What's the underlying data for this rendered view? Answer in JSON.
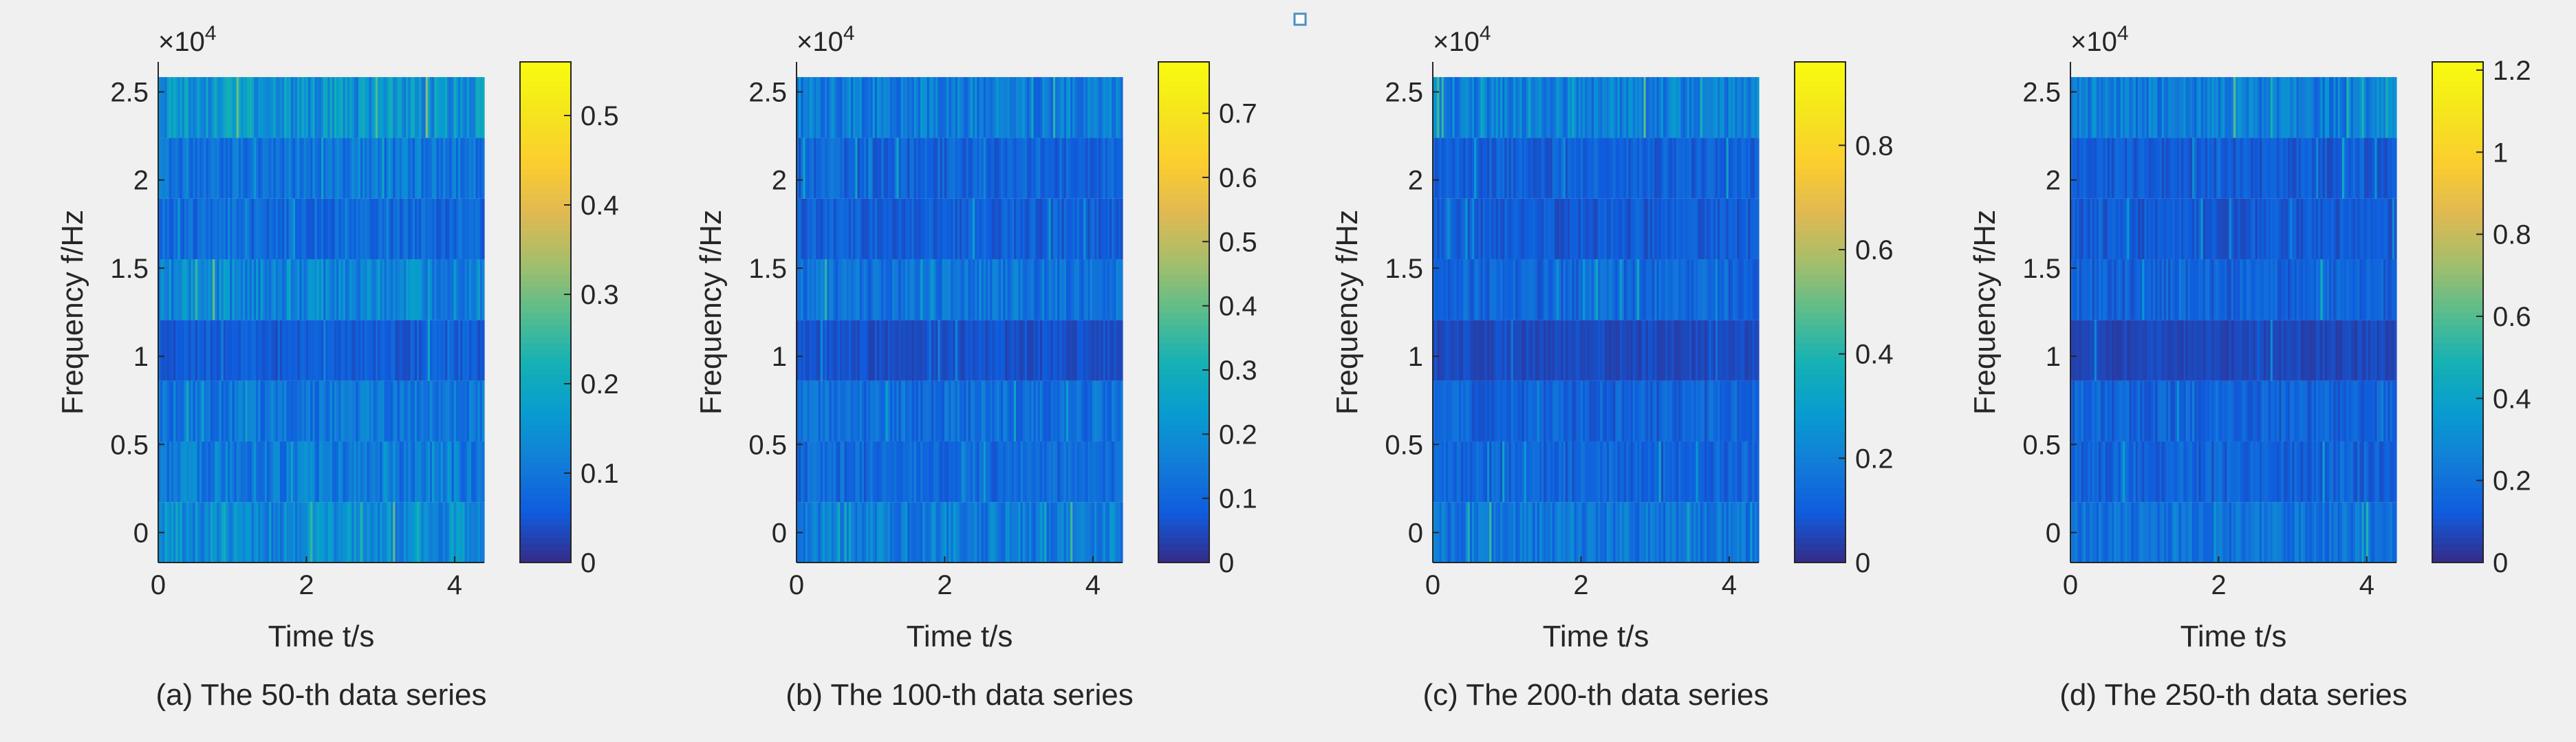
{
  "page": {
    "background": "#f0f0f0",
    "marker_color": "#4a90c0"
  },
  "chart_data": [
    {
      "type": "heatmap",
      "panel_id": "a",
      "caption": "(a) The 50-th data series",
      "xlabel": "Time t/s",
      "ylabel": "Frequency f/Hz",
      "exponent_label": "×10",
      "exponent_power": "4",
      "xlim": [
        0,
        4.4
      ],
      "ylim": [
        -0.17,
        2.67
      ],
      "xticks": [
        0,
        2,
        4
      ],
      "xtick_labels": [
        "0",
        "2",
        "4"
      ],
      "yticks": [
        0,
        0.5,
        1,
        1.5,
        2,
        2.5
      ],
      "ytick_labels": [
        "0",
        "0.5",
        "1",
        "1.5",
        "2",
        "2.5"
      ],
      "colorbar_range": [
        0,
        0.56
      ],
      "colorbar_ticks": [
        0,
        0.1,
        0.2,
        0.3,
        0.4,
        0.5
      ],
      "colorbar_tick_labels": [
        "0",
        "0.1",
        "0.2",
        "0.3",
        "0.4",
        "0.5"
      ],
      "band_centers": [
        0,
        0.3445,
        0.689,
        1.0335,
        1.378,
        1.7225,
        2.067,
        2.4115
      ],
      "band_levels": [
        0.14,
        0.11,
        0.1,
        0.06,
        0.13,
        0.08,
        0.1,
        0.15
      ],
      "time_columns": 150,
      "seed": 50
    },
    {
      "type": "heatmap",
      "panel_id": "b",
      "caption": "(b) The 100-th data series",
      "xlabel": "Time t/s",
      "ylabel": "Frequency f/Hz",
      "exponent_label": "×10",
      "exponent_power": "4",
      "xlim": [
        0,
        4.4
      ],
      "ylim": [
        -0.17,
        2.67
      ],
      "xticks": [
        0,
        2,
        4
      ],
      "xtick_labels": [
        "0",
        "2",
        "4"
      ],
      "yticks": [
        0,
        0.5,
        1,
        1.5,
        2,
        2.5
      ],
      "ytick_labels": [
        "0",
        "0.5",
        "1",
        "1.5",
        "2",
        "2.5"
      ],
      "colorbar_range": [
        0,
        0.78
      ],
      "colorbar_ticks": [
        0,
        0.1,
        0.2,
        0.3,
        0.4,
        0.5,
        0.6,
        0.7
      ],
      "colorbar_tick_labels": [
        "0",
        "0.1",
        "0.2",
        "0.3",
        "0.4",
        "0.5",
        "0.6",
        "0.7"
      ],
      "band_centers": [
        0,
        0.3445,
        0.689,
        1.0335,
        1.378,
        1.7225,
        2.067,
        2.4115
      ],
      "band_levels": [
        0.16,
        0.11,
        0.12,
        0.06,
        0.13,
        0.09,
        0.1,
        0.16
      ],
      "time_columns": 150,
      "seed": 100
    },
    {
      "type": "heatmap",
      "panel_id": "c",
      "caption": "(c) The 200-th data series",
      "xlabel": "Time t/s",
      "ylabel": "Frequency f/Hz",
      "exponent_label": "×10",
      "exponent_power": "4",
      "xlim": [
        0,
        4.4
      ],
      "ylim": [
        -0.17,
        2.67
      ],
      "xticks": [
        0,
        2,
        4
      ],
      "xtick_labels": [
        "0",
        "2",
        "4"
      ],
      "yticks": [
        0,
        0.5,
        1,
        1.5,
        2,
        2.5
      ],
      "ytick_labels": [
        "0",
        "0.5",
        "1",
        "1.5",
        "2",
        "2.5"
      ],
      "colorbar_range": [
        0,
        0.96
      ],
      "colorbar_ticks": [
        0,
        0.2,
        0.4,
        0.6,
        0.8
      ],
      "colorbar_tick_labels": [
        "0",
        "0.2",
        "0.4",
        "0.6",
        "0.8"
      ],
      "band_centers": [
        0,
        0.3445,
        0.689,
        1.0335,
        1.378,
        1.7225,
        2.067,
        2.4115
      ],
      "band_levels": [
        0.17,
        0.12,
        0.12,
        0.06,
        0.13,
        0.1,
        0.11,
        0.2
      ],
      "time_columns": 150,
      "seed": 200
    },
    {
      "type": "heatmap",
      "panel_id": "d",
      "caption": "(d) The 250-th data series",
      "xlabel": "Time t/s",
      "ylabel": "Frequency f/Hz",
      "exponent_label": "×10",
      "exponent_power": "4",
      "xlim": [
        0,
        4.4
      ],
      "ylim": [
        -0.17,
        2.67
      ],
      "xticks": [
        0,
        2,
        4
      ],
      "xtick_labels": [
        "0",
        "2",
        "4"
      ],
      "yticks": [
        0,
        0.5,
        1,
        1.5,
        2,
        2.5
      ],
      "ytick_labels": [
        "0",
        "0.5",
        "1",
        "1.5",
        "2",
        "2.5"
      ],
      "colorbar_range": [
        0,
        1.22
      ],
      "colorbar_ticks": [
        0,
        0.2,
        0.4,
        0.6,
        0.8,
        1,
        1.2
      ],
      "colorbar_tick_labels": [
        "0",
        "0.2",
        "0.4",
        "0.6",
        "0.8",
        "1",
        "1.2"
      ],
      "band_centers": [
        0,
        0.3445,
        0.689,
        1.0335,
        1.378,
        1.7225,
        2.067,
        2.4115
      ],
      "band_levels": [
        0.2,
        0.15,
        0.15,
        0.07,
        0.15,
        0.12,
        0.13,
        0.25
      ],
      "time_columns": 150,
      "seed": 250
    }
  ]
}
